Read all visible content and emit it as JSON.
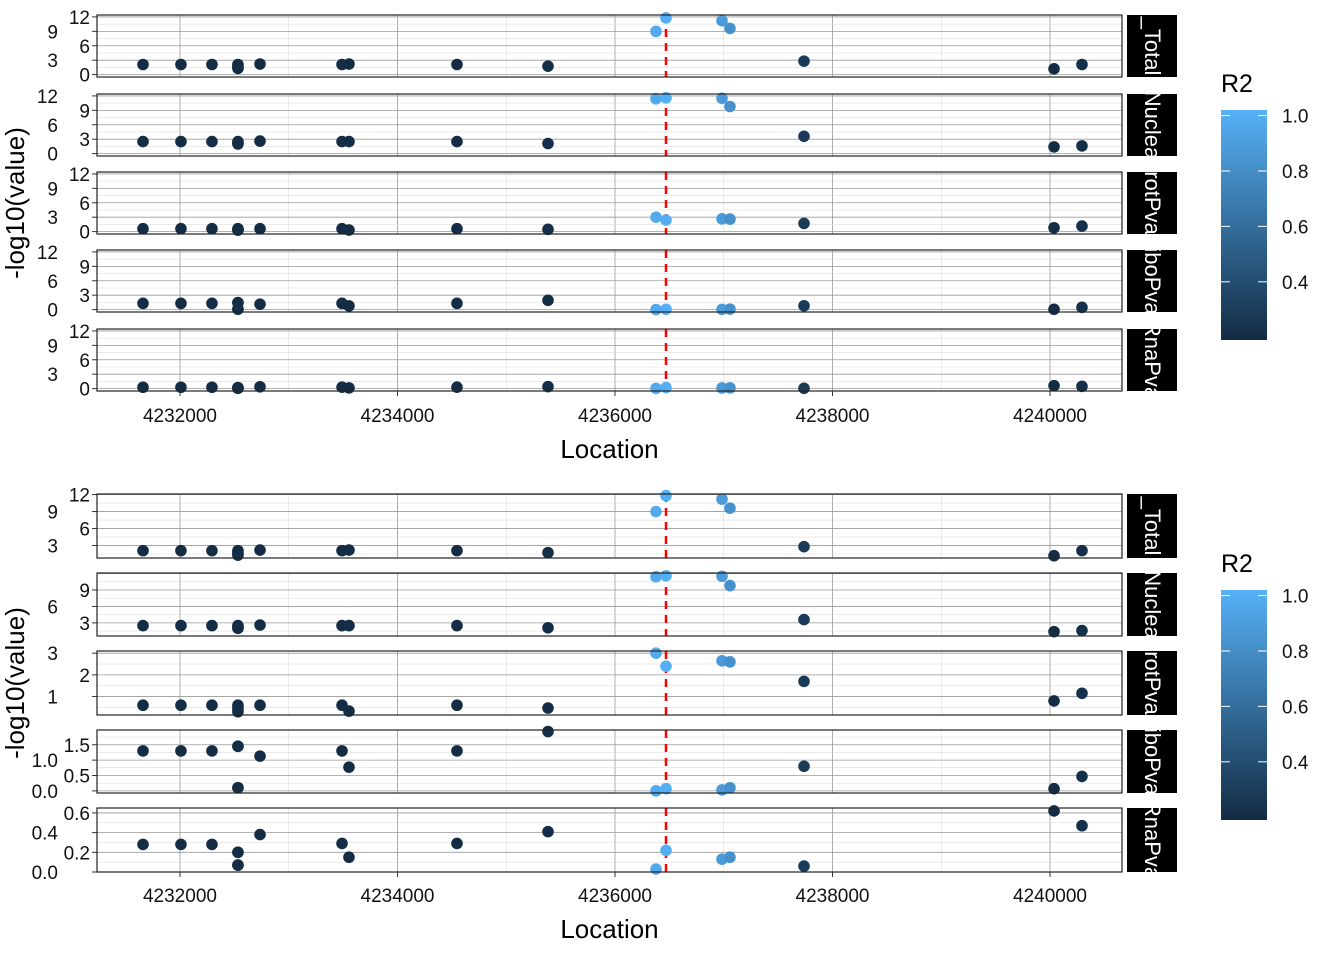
{
  "chart_data": [
    {
      "type": "scatter",
      "id": "top",
      "xlabel": "Location",
      "ylabel": "-log10(value)",
      "xlim": [
        4231237,
        4240662
      ],
      "x_ticks": [
        4232000,
        4234000,
        4236000,
        4238000,
        4240000
      ],
      "x_tick_labels": [
        "4232000",
        "4234000",
        "4236000",
        "4238000",
        "4240000"
      ],
      "vline": {
        "x": 4236469,
        "color": "#FF0000",
        "style": "dashed"
      },
      "grid": true,
      "facets": [
        {
          "label": "_Total",
          "ylim": [
            -0.5,
            12.4
          ],
          "ticks": [
            0,
            3,
            6,
            9,
            12
          ],
          "tick_labels": [
            "0",
            "3",
            "6",
            "9",
            "12"
          ]
        },
        {
          "label": "Nuclea",
          "ylim": [
            -0.5,
            12.4
          ],
          "ticks": [
            0,
            3,
            6,
            9,
            12
          ],
          "tick_labels": [
            "0",
            "3",
            "6",
            "9",
            "12"
          ]
        },
        {
          "label": "rotPva",
          "ylim": [
            -0.5,
            12.4
          ],
          "ticks": [
            0,
            3,
            6,
            9,
            12
          ],
          "tick_labels": [
            "0",
            "3",
            "6",
            "9",
            "12"
          ]
        },
        {
          "label": "iboPva",
          "ylim": [
            -0.5,
            12.4
          ],
          "ticks": [
            0,
            3,
            6,
            9,
            12
          ],
          "tick_labels": [
            "0",
            "3",
            "6",
            "9",
            "12"
          ]
        },
        {
          "label": "RnaPva",
          "ylim": [
            -0.5,
            12.4
          ],
          "ticks": [
            0,
            3,
            6,
            9,
            12
          ],
          "tick_labels": [
            "0",
            "3",
            "6",
            "9",
            "12"
          ]
        }
      ],
      "legend": {
        "title": "R2",
        "placement": "right",
        "range": [
          0.19,
          1.02
        ],
        "ticks": [
          0.4,
          0.6,
          0.8,
          1.0
        ],
        "tick_labels": [
          "0.4",
          "0.6",
          "0.8",
          "1.0"
        ],
        "low_color": "#132B43",
        "high_color": "#56B1F7"
      }
    },
    {
      "type": "scatter",
      "id": "bottom",
      "xlabel": "Location",
      "ylabel": "-log10(value)",
      "xlim": [
        4231237,
        4240662
      ],
      "x_ticks": [
        4232000,
        4234000,
        4236000,
        4238000,
        4240000
      ],
      "x_tick_labels": [
        "4232000",
        "4234000",
        "4236000",
        "4238000",
        "4240000"
      ],
      "vline": {
        "x": 4236469,
        "color": "#FF0000",
        "style": "dashed"
      },
      "grid": true,
      "facets": [
        {
          "label": "_Total",
          "ylim": [
            0.8,
            12.1
          ],
          "ticks": [
            3,
            6,
            9,
            12
          ],
          "tick_labels": [
            "3",
            "6",
            "9",
            "12"
          ]
        },
        {
          "label": "Nuclea",
          "ylim": [
            0.6,
            12.1
          ],
          "ticks": [
            3,
            6,
            9
          ],
          "tick_labels": [
            "3",
            "6",
            "9"
          ]
        },
        {
          "label": "rotPva",
          "ylim": [
            0.15,
            3.1
          ],
          "ticks": [
            1,
            2,
            3
          ],
          "tick_labels": [
            "1",
            "2",
            "3"
          ]
        },
        {
          "label": "iboPva",
          "ylim": [
            -0.07,
            1.98
          ],
          "ticks": [
            0.0,
            0.5,
            1.0,
            1.5
          ],
          "tick_labels": [
            "0.0",
            "0.5",
            "1.0",
            "1.5"
          ]
        },
        {
          "label": "RnaPva",
          "ylim": [
            0.0,
            0.65
          ],
          "ticks": [
            0.0,
            0.2,
            0.4,
            0.6
          ],
          "tick_labels": [
            "0.0",
            "0.2",
            "0.4",
            "0.6"
          ]
        }
      ],
      "legend": {
        "title": "R2",
        "placement": "right",
        "range": [
          0.19,
          1.02
        ],
        "ticks": [
          0.4,
          0.6,
          0.8,
          1.0
        ],
        "tick_labels": [
          "0.4",
          "0.6",
          "0.8",
          "1.0"
        ],
        "low_color": "#132B43",
        "high_color": "#56B1F7"
      }
    }
  ],
  "points": [
    {
      "x": 4231660,
      "r2": 0.2,
      "values": [
        2.1,
        2.5,
        0.6,
        1.3,
        0.28
      ]
    },
    {
      "x": 4232009,
      "r2": 0.2,
      "values": [
        2.1,
        2.5,
        0.6,
        1.3,
        0.28
      ]
    },
    {
      "x": 4232294,
      "r2": 0.2,
      "values": [
        2.1,
        2.5,
        0.6,
        1.3,
        0.28
      ]
    },
    {
      "x": 4232533,
      "r2": 0.2,
      "values": [
        2.1,
        2.5,
        0.6,
        1.45,
        0.2
      ]
    },
    {
      "x": 4232533,
      "r2": 0.2,
      "values": [
        1.8,
        2.3,
        0.5,
        1.45,
        0.2
      ]
    },
    {
      "x": 4232533,
      "r2": 0.2,
      "values": [
        1.5,
        2.0,
        0.4,
        0.1,
        0.07
      ]
    },
    {
      "x": 4232533,
      "r2": 0.2,
      "values": [
        1.3,
        2.1,
        0.3,
        0.1,
        0.07
      ]
    },
    {
      "x": 4232736,
      "r2": 0.2,
      "values": [
        2.2,
        2.6,
        0.6,
        1.13,
        0.38
      ]
    },
    {
      "x": 4233490,
      "r2": 0.2,
      "values": [
        2.1,
        2.5,
        0.6,
        1.3,
        0.29
      ]
    },
    {
      "x": 4233554,
      "r2": 0.2,
      "values": [
        2.2,
        2.5,
        0.33,
        0.77,
        0.15
      ]
    },
    {
      "x": 4234547,
      "r2": 0.2,
      "values": [
        2.1,
        2.5,
        0.6,
        1.3,
        0.29
      ]
    },
    {
      "x": 4235384,
      "r2": 0.21,
      "values": [
        1.75,
        2.1,
        0.47,
        1.93,
        0.41
      ]
    },
    {
      "x": 4236377,
      "r2": 0.97,
      "values": [
        9.0,
        11.4,
        3.0,
        0.0,
        0.03
      ]
    },
    {
      "x": 4236469,
      "r2": 1.0,
      "values": [
        11.8,
        11.6,
        2.4,
        0.07,
        0.22
      ]
    },
    {
      "x": 4236984,
      "r2": 0.88,
      "values": [
        11.2,
        11.5,
        2.65,
        0.03,
        0.13
      ]
    },
    {
      "x": 4237057,
      "r2": 0.82,
      "values": [
        9.6,
        9.8,
        2.6,
        0.1,
        0.15
      ]
    },
    {
      "x": 4237738,
      "r2": 0.28,
      "values": [
        2.8,
        3.6,
        1.7,
        0.8,
        0.06
      ]
    },
    {
      "x": 4240037,
      "r2": 0.2,
      "values": [
        1.2,
        1.4,
        0.8,
        0.07,
        0.62
      ]
    },
    {
      "x": 4240294,
      "r2": 0.22,
      "values": [
        2.1,
        1.6,
        1.15,
        0.47,
        0.47
      ]
    }
  ]
}
